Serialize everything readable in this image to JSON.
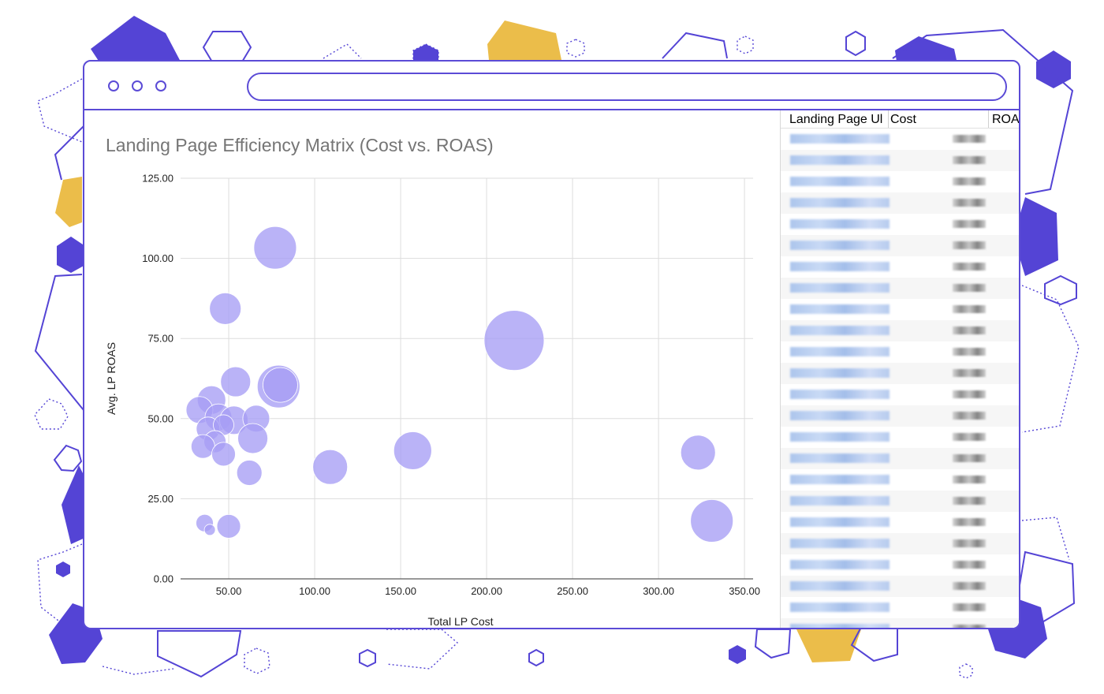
{
  "window": {
    "address_value": ""
  },
  "table": {
    "headers": [
      "Landing Page Ul",
      "Cost",
      "ROA"
    ],
    "row_count": 24
  },
  "colors": {
    "frame": "#5b4bd6",
    "bubble": "#a79df5",
    "accent_yellow": "#ebbd4a",
    "gridline": "#dddddd"
  },
  "chart_data": {
    "type": "scatter",
    "title": "Landing Page Efficiency Matrix (Cost vs. ROAS)",
    "xlabel": "Total LP Cost",
    "ylabel": "Avg. LP ROAS",
    "xlim": [
      22,
      355
    ],
    "ylim": [
      0,
      125
    ],
    "xticks": [
      "50.00",
      "100.00",
      "150.00",
      "200.00",
      "250.00",
      "300.00",
      "350.00"
    ],
    "yticks": [
      "0.00",
      "25.00",
      "50.00",
      "75.00",
      "100.00",
      "125.00"
    ],
    "grid": true,
    "points": [
      {
        "x": 77,
        "y": 103.3,
        "r": 27
      },
      {
        "x": 48,
        "y": 84.3,
        "r": 20
      },
      {
        "x": 216,
        "y": 74.4,
        "r": 38
      },
      {
        "x": 54,
        "y": 61.5,
        "r": 19
      },
      {
        "x": 79,
        "y": 60.0,
        "r": 27
      },
      {
        "x": 80,
        "y": 60.5,
        "r": 22
      },
      {
        "x": 40,
        "y": 55.8,
        "r": 18
      },
      {
        "x": 33,
        "y": 52.7,
        "r": 17
      },
      {
        "x": 44,
        "y": 50.4,
        "r": 17
      },
      {
        "x": 53,
        "y": 49.5,
        "r": 18
      },
      {
        "x": 66,
        "y": 50.0,
        "r": 17
      },
      {
        "x": 38,
        "y": 46.8,
        "r": 15
      },
      {
        "x": 47,
        "y": 48.0,
        "r": 13
      },
      {
        "x": 64,
        "y": 43.8,
        "r": 19
      },
      {
        "x": 42,
        "y": 42.8,
        "r": 14
      },
      {
        "x": 35,
        "y": 41.3,
        "r": 15
      },
      {
        "x": 47,
        "y": 38.9,
        "r": 15
      },
      {
        "x": 157,
        "y": 40.0,
        "r": 24
      },
      {
        "x": 323,
        "y": 39.4,
        "r": 22
      },
      {
        "x": 109,
        "y": 34.9,
        "r": 22
      },
      {
        "x": 62,
        "y": 33.1,
        "r": 16
      },
      {
        "x": 331,
        "y": 18.1,
        "r": 27
      },
      {
        "x": 36,
        "y": 17.4,
        "r": 11
      },
      {
        "x": 50,
        "y": 16.4,
        "r": 15
      },
      {
        "x": 39,
        "y": 15.3,
        "r": 7
      }
    ]
  }
}
